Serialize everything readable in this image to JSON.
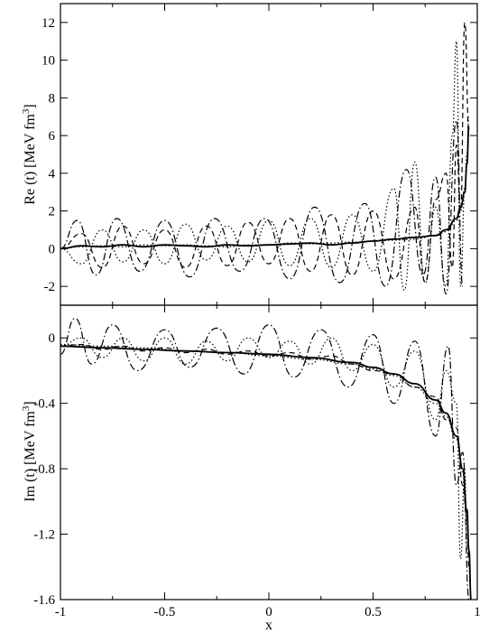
{
  "chart_data": [
    {
      "type": "line",
      "panel": "top",
      "ylabel": "Re (t) [MeV fm",
      "ylabel_sup": "3",
      "ylabel_end": "]",
      "xlim": [
        -1,
        1
      ],
      "ylim": [
        -3,
        13
      ],
      "xticks": [
        -1,
        -0.5,
        0,
        0.5,
        1
      ],
      "yticks": [
        -2,
        0,
        2,
        4,
        6,
        8,
        10,
        12
      ],
      "ytick_labels": [
        "-2",
        "0",
        "2",
        "4",
        "6",
        "8",
        "10",
        "12"
      ],
      "grid": false,
      "series": [
        {
          "style": "solid",
          "x": [
            -1,
            -0.9,
            -0.8,
            -0.7,
            -0.6,
            -0.5,
            -0.4,
            -0.3,
            -0.2,
            -0.1,
            0,
            0.1,
            0.2,
            0.3,
            0.4,
            0.5,
            0.6,
            0.7,
            0.8,
            0.85,
            0.9,
            0.92,
            0.94,
            0.95,
            0.96
          ],
          "y": [
            0,
            0.15,
            0.1,
            0.2,
            0.1,
            0.2,
            0.15,
            0.1,
            0.2,
            0.15,
            0.2,
            0.25,
            0.3,
            0.2,
            0.3,
            0.4,
            0.5,
            0.6,
            0.7,
            1.0,
            1.6,
            2.2,
            3.0,
            4.5,
            6.5
          ]
        },
        {
          "style": "dotted",
          "x": [
            -1,
            -0.9,
            -0.8,
            -0.7,
            -0.6,
            -0.5,
            -0.4,
            -0.3,
            -0.2,
            -0.1,
            0,
            0.1,
            0.2,
            0.3,
            0.4,
            0.5,
            0.6,
            0.7,
            0.8,
            0.85,
            0.9,
            0.92,
            0.94,
            0.95,
            0.96
          ],
          "y": [
            0,
            0.1,
            0.15,
            0.1,
            0.2,
            0.15,
            0.2,
            0.15,
            0.1,
            0.2,
            0.2,
            0.3,
            0.25,
            0.3,
            0.35,
            0.4,
            0.45,
            0.5,
            0.7,
            0.9,
            1.5,
            2.0,
            3.2,
            5.0,
            7.0
          ]
        },
        {
          "style": "dashed",
          "x": [
            -1,
            -0.9,
            -0.8,
            -0.7,
            -0.6,
            -0.5,
            -0.4,
            -0.3,
            -0.2,
            -0.1,
            0,
            0.1,
            0.2,
            0.3,
            0.4,
            0.5,
            0.6,
            0.7,
            0.75,
            0.8,
            0.85,
            0.88,
            0.9,
            0.92,
            0.94,
            0.96
          ],
          "y": [
            0,
            0.8,
            -1.0,
            1.2,
            -0.8,
            1.0,
            -1.0,
            1.2,
            -0.9,
            1.4,
            -0.8,
            1.6,
            -1.2,
            1.8,
            -1.4,
            2.0,
            -1.6,
            2.2,
            -1.8,
            2.6,
            4.0,
            -1.0,
            5.5,
            2.0,
            12,
            6.0
          ]
        },
        {
          "style": "dotted",
          "x": [
            -1,
            -0.9,
            -0.8,
            -0.7,
            -0.6,
            -0.5,
            -0.4,
            -0.3,
            -0.2,
            -0.1,
            0,
            0.1,
            0.2,
            0.3,
            0.4,
            0.5,
            0.6,
            0.65,
            0.7,
            0.75,
            0.8,
            0.85,
            0.88,
            0.9,
            0.92,
            0.94
          ],
          "y": [
            0,
            -0.8,
            1.0,
            -0.7,
            1.0,
            -0.8,
            1.3,
            -0.6,
            1.2,
            -0.7,
            1.5,
            -0.9,
            1.6,
            -1.0,
            1.8,
            -1.2,
            3.2,
            -2.2,
            4.6,
            -1.8,
            2.2,
            -2.0,
            6.0,
            11.0,
            -2.0,
            3.0
          ]
        },
        {
          "style": "dashdot",
          "x": [
            -1,
            -0.92,
            -0.83,
            -0.73,
            -0.62,
            -0.5,
            -0.38,
            -0.26,
            -0.14,
            -0.02,
            0.1,
            0.22,
            0.34,
            0.46,
            0.56,
            0.66,
            0.74,
            0.8,
            0.85,
            0.9,
            0.93
          ],
          "y": [
            0,
            1.5,
            -1.4,
            1.6,
            -1.2,
            1.5,
            -1.5,
            1.6,
            -1.2,
            1.6,
            -1.6,
            2.2,
            -1.8,
            2.4,
            -2.0,
            4.2,
            -1.4,
            3.8,
            -2.4,
            6.8,
            -2.0
          ]
        }
      ]
    },
    {
      "type": "line",
      "panel": "bottom",
      "ylabel": "Im (t) [MeV fm",
      "ylabel_sup": "3",
      "ylabel_end": "]",
      "xlabel": "x",
      "xlim": [
        -1,
        1
      ],
      "ylim": [
        -1.6,
        0.2
      ],
      "xticks": [
        -1,
        -0.5,
        0,
        0.5,
        1
      ],
      "xtick_labels": [
        "-1",
        "-0.5",
        "0",
        "0.5",
        "1"
      ],
      "yticks": [
        0,
        -0.4,
        -0.8,
        -1.2,
        -1.6
      ],
      "ytick_labels": [
        "0",
        "-0.4",
        "-0.8",
        "-1.2",
        "-1.6"
      ],
      "grid": false,
      "series": [
        {
          "style": "solid",
          "x": [
            -1,
            -0.8,
            -0.6,
            -0.4,
            -0.2,
            0,
            0.2,
            0.4,
            0.5,
            0.6,
            0.7,
            0.8,
            0.85,
            0.9,
            0.93,
            0.95,
            0.96,
            0.97
          ],
          "y": [
            -0.05,
            -0.06,
            -0.07,
            -0.08,
            -0.09,
            -0.1,
            -0.12,
            -0.15,
            -0.18,
            -0.22,
            -0.28,
            -0.38,
            -0.46,
            -0.6,
            -0.8,
            -1.05,
            -1.3,
            -1.6
          ]
        },
        {
          "style": "dotted",
          "x": [
            -1,
            -0.8,
            -0.6,
            -0.4,
            -0.2,
            0,
            0.2,
            0.4,
            0.5,
            0.6,
            0.7,
            0.8,
            0.85,
            0.9,
            0.93,
            0.95,
            0.96,
            0.97
          ],
          "y": [
            -0.04,
            -0.05,
            -0.06,
            -0.08,
            -0.09,
            -0.11,
            -0.13,
            -0.16,
            -0.19,
            -0.23,
            -0.3,
            -0.4,
            -0.48,
            -0.62,
            -0.82,
            -1.08,
            -1.32,
            -1.6
          ]
        },
        {
          "style": "dashed",
          "x": [
            -1,
            -0.9,
            -0.8,
            -0.7,
            -0.6,
            -0.5,
            -0.4,
            -0.3,
            -0.2,
            -0.1,
            0,
            0.1,
            0.2,
            0.3,
            0.4,
            0.5,
            0.6,
            0.7,
            0.8,
            0.85,
            0.9,
            0.93,
            0.95,
            0.96,
            0.97
          ],
          "y": [
            -0.05,
            -0.04,
            -0.07,
            -0.05,
            -0.08,
            -0.06,
            -0.09,
            -0.07,
            -0.1,
            -0.08,
            -0.11,
            -0.09,
            -0.13,
            -0.11,
            -0.16,
            -0.2,
            -0.22,
            -0.3,
            -0.36,
            -0.5,
            -0.55,
            -0.9,
            -1.1,
            -1.4,
            -1.6
          ]
        },
        {
          "style": "dotted",
          "x": [
            -1,
            -0.9,
            -0.8,
            -0.7,
            -0.6,
            -0.5,
            -0.4,
            -0.3,
            -0.2,
            -0.1,
            0,
            0.1,
            0.2,
            0.3,
            0.4,
            0.5,
            0.6,
            0.7,
            0.8,
            0.85,
            0.9,
            0.92,
            0.94,
            0.95
          ],
          "y": [
            -0.05,
            0.0,
            -0.12,
            0.0,
            -0.14,
            0.0,
            -0.16,
            -0.02,
            -0.14,
            0.0,
            -0.12,
            -0.02,
            -0.16,
            0.0,
            -0.2,
            -0.04,
            -0.3,
            -0.08,
            -0.5,
            -0.2,
            -0.4,
            -1.35,
            -0.8,
            -1.3
          ]
        },
        {
          "style": "dashdot",
          "x": [
            -1,
            -0.93,
            -0.85,
            -0.75,
            -0.63,
            -0.5,
            -0.38,
            -0.25,
            -0.12,
            0,
            0.12,
            0.25,
            0.38,
            0.5,
            0.6,
            0.7,
            0.8,
            0.86,
            0.9,
            0.93,
            0.96
          ],
          "y": [
            -0.1,
            0.12,
            -0.16,
            0.08,
            -0.2,
            0.05,
            -0.18,
            0.06,
            -0.22,
            0.08,
            -0.24,
            0.05,
            -0.3,
            0.02,
            -0.4,
            -0.02,
            -0.6,
            -0.05,
            -0.9,
            -0.7,
            -1.6
          ]
        }
      ]
    }
  ]
}
